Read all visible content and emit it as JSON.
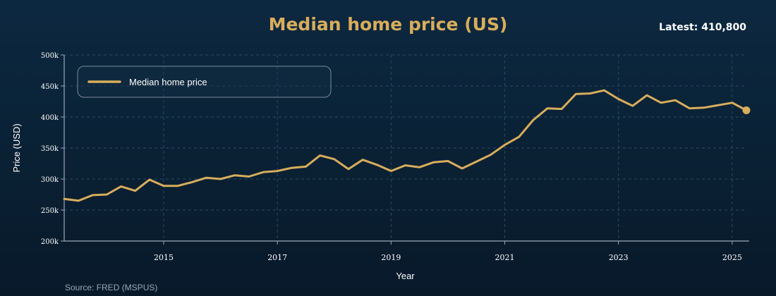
{
  "title": "Median home price (US)",
  "latest_label": "Latest: 410,800",
  "source": "Source: FRED (MSPUS)",
  "colors": {
    "line": "#d8ad5c",
    "axis": "#9aa8b8",
    "grid": "#2a4a66",
    "text": "#ffffff"
  },
  "chart_data": {
    "type": "line",
    "title": "Median home price (US)",
    "xlabel": "Year",
    "ylabel": "Price (USD)",
    "xlim": [
      2013.25,
      2025.25
    ],
    "ylim": [
      200000,
      500000
    ],
    "x_ticks": [
      2015,
      2017,
      2019,
      2021,
      2023,
      2025
    ],
    "x_tick_labels": [
      "2015",
      "2017",
      "2019",
      "2021",
      "2023",
      "2025"
    ],
    "y_ticks": [
      200000,
      250000,
      300000,
      350000,
      400000,
      450000,
      500000
    ],
    "y_tick_labels": [
      "200k",
      "250k",
      "300k",
      "350k",
      "400k",
      "450k",
      "500k"
    ],
    "grid": true,
    "legend": {
      "position": "top-left",
      "entries": [
        "Median home price"
      ]
    },
    "series": [
      {
        "name": "Median home price",
        "x": [
          2013.25,
          2013.5,
          2013.75,
          2014.0,
          2014.25,
          2014.5,
          2014.75,
          2015.0,
          2015.25,
          2015.5,
          2015.75,
          2016.0,
          2016.25,
          2016.5,
          2016.75,
          2017.0,
          2017.25,
          2017.5,
          2017.75,
          2018.0,
          2018.25,
          2018.5,
          2018.75,
          2019.0,
          2019.25,
          2019.5,
          2019.75,
          2020.0,
          2020.25,
          2020.5,
          2020.75,
          2021.0,
          2021.25,
          2021.5,
          2021.75,
          2022.0,
          2022.25,
          2022.5,
          2022.75,
          2023.0,
          2023.25,
          2023.5,
          2023.75,
          2024.0,
          2024.25,
          2024.5,
          2024.75,
          2025.0,
          2025.25
        ],
        "values": [
          268000,
          265000,
          274000,
          275000,
          288000,
          281000,
          299000,
          289000,
          289000,
          295000,
          302000,
          300000,
          306000,
          304000,
          311000,
          313000,
          318000,
          320000,
          338000,
          332000,
          316000,
          331000,
          323000,
          313000,
          322000,
          319000,
          327000,
          329000,
          317000,
          328000,
          339000,
          355000,
          368000,
          395000,
          414000,
          413000,
          437000,
          438000,
          443000,
          429000,
          418000,
          435000,
          423000,
          427000,
          414000,
          415000,
          419000,
          423000,
          410800
        ]
      }
    ],
    "annotations": [
      "Latest: 410,800"
    ]
  }
}
